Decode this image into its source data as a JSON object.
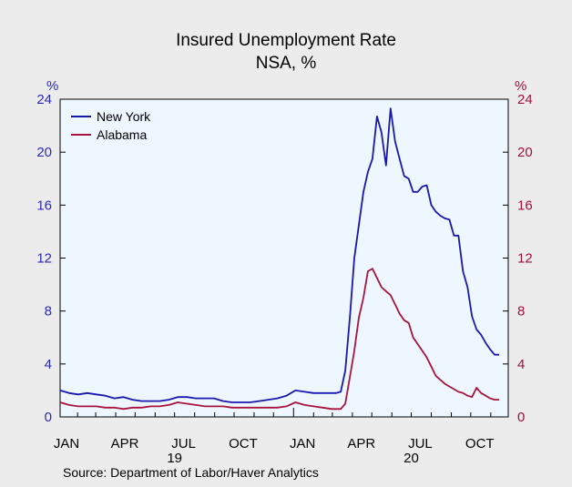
{
  "chart_data": {
    "type": "line",
    "title": "Insured Unemployment Rate",
    "subtitle": "NSA, %",
    "source": "Source:  Department of Labor/Haver Analytics",
    "y_left": {
      "unit": "%",
      "ylim": [
        0,
        24
      ],
      "ticks": [
        0,
        4,
        8,
        12,
        16,
        20,
        24
      ],
      "color": "#2a2ab8"
    },
    "y_right": {
      "unit": "%",
      "ylim": [
        0,
        24
      ],
      "ticks": [
        0,
        4,
        8,
        12,
        16,
        20,
        24
      ],
      "color": "#a0103a"
    },
    "x_axis": {
      "start": "2019-01-05",
      "end": "2020-11-28",
      "month_labels": [
        {
          "label": "JAN",
          "date": "2019-01-15"
        },
        {
          "label": "APR",
          "date": "2019-04-15"
        },
        {
          "label": "JUL",
          "date": "2019-07-15"
        },
        {
          "label": "OCT",
          "date": "2019-10-15"
        },
        {
          "label": "JAN",
          "date": "2020-01-15"
        },
        {
          "label": "APR",
          "date": "2020-04-15"
        },
        {
          "label": "JUL",
          "date": "2020-07-15"
        },
        {
          "label": "OCT",
          "date": "2020-10-15"
        }
      ],
      "year_labels": [
        {
          "label": "19",
          "date": "2019-07-01"
        },
        {
          "label": "20",
          "date": "2020-07-01"
        }
      ]
    },
    "grid": false,
    "legend_position": "top-left",
    "series": [
      {
        "name": "New York",
        "color": "#1818b0",
        "axis": "left",
        "points": [
          [
            "2019-01-05",
            2.0
          ],
          [
            "2019-01-19",
            1.8
          ],
          [
            "2019-02-02",
            1.7
          ],
          [
            "2019-02-16",
            1.8
          ],
          [
            "2019-03-02",
            1.7
          ],
          [
            "2019-03-16",
            1.6
          ],
          [
            "2019-03-30",
            1.4
          ],
          [
            "2019-04-13",
            1.5
          ],
          [
            "2019-04-27",
            1.3
          ],
          [
            "2019-05-11",
            1.2
          ],
          [
            "2019-05-25",
            1.2
          ],
          [
            "2019-06-08",
            1.2
          ],
          [
            "2019-06-22",
            1.3
          ],
          [
            "2019-07-06",
            1.5
          ],
          [
            "2019-07-20",
            1.5
          ],
          [
            "2019-08-03",
            1.4
          ],
          [
            "2019-08-17",
            1.4
          ],
          [
            "2019-08-31",
            1.4
          ],
          [
            "2019-09-14",
            1.2
          ],
          [
            "2019-09-28",
            1.1
          ],
          [
            "2019-10-12",
            1.1
          ],
          [
            "2019-10-26",
            1.1
          ],
          [
            "2019-11-09",
            1.2
          ],
          [
            "2019-11-23",
            1.3
          ],
          [
            "2019-12-07",
            1.4
          ],
          [
            "2019-12-21",
            1.6
          ],
          [
            "2020-01-04",
            2.0
          ],
          [
            "2020-01-18",
            1.9
          ],
          [
            "2020-02-01",
            1.8
          ],
          [
            "2020-02-15",
            1.8
          ],
          [
            "2020-02-29",
            1.8
          ],
          [
            "2020-03-07",
            1.8
          ],
          [
            "2020-03-14",
            1.9
          ],
          [
            "2020-03-21",
            3.5
          ],
          [
            "2020-03-28",
            7.5
          ],
          [
            "2020-04-04",
            12.0
          ],
          [
            "2020-04-11",
            14.5
          ],
          [
            "2020-04-18",
            17.0
          ],
          [
            "2020-04-25",
            18.5
          ],
          [
            "2020-05-02",
            19.5
          ],
          [
            "2020-05-09",
            22.7
          ],
          [
            "2020-05-16",
            21.5
          ],
          [
            "2020-05-23",
            19.0
          ],
          [
            "2020-05-30",
            23.3
          ],
          [
            "2020-06-06",
            20.8
          ],
          [
            "2020-06-13",
            19.5
          ],
          [
            "2020-06-20",
            18.2
          ],
          [
            "2020-06-27",
            18.0
          ],
          [
            "2020-07-04",
            17.0
          ],
          [
            "2020-07-11",
            17.0
          ],
          [
            "2020-07-18",
            17.4
          ],
          [
            "2020-07-25",
            17.5
          ],
          [
            "2020-08-01",
            16.0
          ],
          [
            "2020-08-08",
            15.5
          ],
          [
            "2020-08-15",
            15.2
          ],
          [
            "2020-08-22",
            15.0
          ],
          [
            "2020-08-29",
            14.9
          ],
          [
            "2020-09-05",
            13.7
          ],
          [
            "2020-09-12",
            13.7
          ],
          [
            "2020-09-19",
            11.0
          ],
          [
            "2020-09-26",
            9.8
          ],
          [
            "2020-10-03",
            7.6
          ],
          [
            "2020-10-10",
            6.6
          ],
          [
            "2020-10-17",
            6.2
          ],
          [
            "2020-10-24",
            5.6
          ],
          [
            "2020-10-31",
            5.1
          ],
          [
            "2020-11-07",
            4.7
          ],
          [
            "2020-11-14",
            4.7
          ]
        ]
      },
      {
        "name": "Alabama",
        "color": "#a8143c",
        "axis": "right",
        "points": [
          [
            "2019-01-05",
            1.1
          ],
          [
            "2019-01-19",
            0.9
          ],
          [
            "2019-02-02",
            0.8
          ],
          [
            "2019-02-16",
            0.8
          ],
          [
            "2019-03-02",
            0.8
          ],
          [
            "2019-03-16",
            0.7
          ],
          [
            "2019-03-30",
            0.7
          ],
          [
            "2019-04-13",
            0.6
          ],
          [
            "2019-04-27",
            0.7
          ],
          [
            "2019-05-11",
            0.7
          ],
          [
            "2019-05-25",
            0.8
          ],
          [
            "2019-06-08",
            0.8
          ],
          [
            "2019-06-22",
            0.9
          ],
          [
            "2019-07-06",
            1.1
          ],
          [
            "2019-07-20",
            1.0
          ],
          [
            "2019-08-03",
            0.9
          ],
          [
            "2019-08-17",
            0.8
          ],
          [
            "2019-08-31",
            0.8
          ],
          [
            "2019-09-14",
            0.8
          ],
          [
            "2019-09-28",
            0.7
          ],
          [
            "2019-10-12",
            0.7
          ],
          [
            "2019-10-26",
            0.7
          ],
          [
            "2019-11-09",
            0.7
          ],
          [
            "2019-11-23",
            0.7
          ],
          [
            "2019-12-07",
            0.7
          ],
          [
            "2019-12-21",
            0.8
          ],
          [
            "2020-01-04",
            1.1
          ],
          [
            "2020-01-18",
            0.9
          ],
          [
            "2020-02-01",
            0.8
          ],
          [
            "2020-02-15",
            0.7
          ],
          [
            "2020-02-29",
            0.6
          ],
          [
            "2020-03-07",
            0.6
          ],
          [
            "2020-03-14",
            0.6
          ],
          [
            "2020-03-21",
            1.0
          ],
          [
            "2020-03-28",
            3.0
          ],
          [
            "2020-04-04",
            5.0
          ],
          [
            "2020-04-11",
            7.5
          ],
          [
            "2020-04-18",
            9.0
          ],
          [
            "2020-04-25",
            11.0
          ],
          [
            "2020-05-02",
            11.2
          ],
          [
            "2020-05-09",
            10.5
          ],
          [
            "2020-05-16",
            9.8
          ],
          [
            "2020-05-23",
            9.5
          ],
          [
            "2020-05-30",
            9.2
          ],
          [
            "2020-06-06",
            8.5
          ],
          [
            "2020-06-13",
            7.8
          ],
          [
            "2020-06-20",
            7.3
          ],
          [
            "2020-06-27",
            7.1
          ],
          [
            "2020-07-04",
            6.0
          ],
          [
            "2020-07-11",
            5.5
          ],
          [
            "2020-07-18",
            5.0
          ],
          [
            "2020-07-25",
            4.5
          ],
          [
            "2020-08-01",
            3.8
          ],
          [
            "2020-08-08",
            3.1
          ],
          [
            "2020-08-15",
            2.8
          ],
          [
            "2020-08-22",
            2.5
          ],
          [
            "2020-08-29",
            2.3
          ],
          [
            "2020-09-05",
            2.1
          ],
          [
            "2020-09-12",
            1.9
          ],
          [
            "2020-09-19",
            1.8
          ],
          [
            "2020-09-26",
            1.6
          ],
          [
            "2020-10-03",
            1.5
          ],
          [
            "2020-10-10",
            2.2
          ],
          [
            "2020-10-17",
            1.8
          ],
          [
            "2020-10-24",
            1.6
          ],
          [
            "2020-10-31",
            1.4
          ],
          [
            "2020-11-07",
            1.3
          ],
          [
            "2020-11-14",
            1.3
          ]
        ]
      }
    ]
  }
}
